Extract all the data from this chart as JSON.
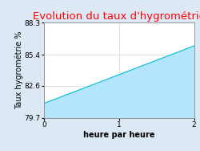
{
  "title": "Evolution du taux d'hygrométrie",
  "title_color": "#ff0000",
  "xlabel": "heure par heure",
  "ylabel": "Taux hygrométrie %",
  "x_data": [
    0,
    2
  ],
  "y_data": [
    81.0,
    86.2
  ],
  "y_fill_bottom": 79.7,
  "xlim": [
    0,
    2
  ],
  "ylim": [
    79.7,
    88.3
  ],
  "yticks": [
    79.7,
    82.6,
    85.4,
    88.3
  ],
  "xticks": [
    0,
    1,
    2
  ],
  "line_color": "#00bcd4",
  "fill_color": "#b3e5fc",
  "background_color": "#dce9f5",
  "axes_bg_color": "#ffffff",
  "title_fontsize": 9.5,
  "label_fontsize": 7,
  "tick_fontsize": 6.5
}
